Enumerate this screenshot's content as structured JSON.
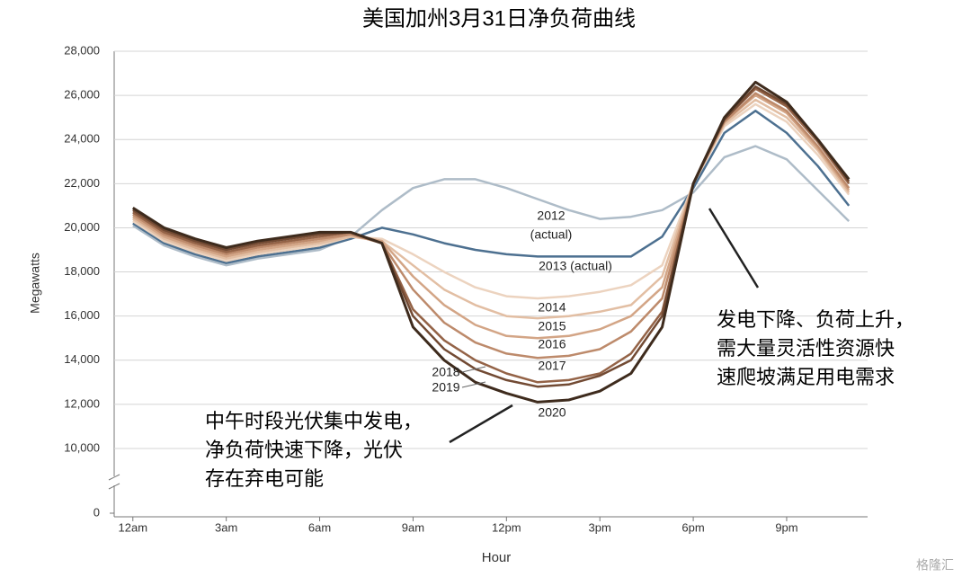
{
  "chart_data": {
    "type": "line",
    "title": "美国加州3月31日净负荷曲线",
    "x_label": "Hour",
    "y_label": "Megawatts",
    "x": [
      0,
      1,
      2,
      3,
      4,
      5,
      6,
      7,
      8,
      9,
      10,
      11,
      12,
      13,
      14,
      15,
      16,
      17,
      18,
      19,
      20,
      21,
      22,
      23
    ],
    "xlim": [
      -0.6,
      23.6
    ],
    "xticks": [
      {
        "value": 0,
        "label": "12am"
      },
      {
        "value": 3,
        "label": "3am"
      },
      {
        "value": 6,
        "label": "6am"
      },
      {
        "value": 9,
        "label": "9am"
      },
      {
        "value": 12,
        "label": "12pm"
      },
      {
        "value": 15,
        "label": "3pm"
      },
      {
        "value": 18,
        "label": "6pm"
      },
      {
        "value": 21,
        "label": "9pm"
      }
    ],
    "ylim": [
      0,
      28000
    ],
    "y_break": [
      0,
      10000
    ],
    "yticks": [
      0,
      {
        "value": 10000,
        "label": "10,000"
      },
      {
        "value": 12000,
        "label": "12,000"
      },
      {
        "value": 14000,
        "label": "14,000"
      },
      {
        "value": 16000,
        "label": "16,000"
      },
      {
        "value": 18000,
        "label": "18,000"
      },
      {
        "value": 20000,
        "label": "20,000"
      },
      {
        "value": 22000,
        "label": "22,000"
      },
      {
        "value": 24000,
        "label": "24,000"
      },
      {
        "value": 26000,
        "label": "26,000"
      },
      {
        "value": 28000,
        "label": "28,000"
      }
    ],
    "grid": true,
    "series": [
      {
        "name": "2012",
        "note": "(actual)",
        "color": "#aebcc8",
        "values": [
          20100,
          19200,
          18700,
          18300,
          18600,
          18800,
          19000,
          19600,
          20800,
          21800,
          22200,
          22200,
          21800,
          21300,
          20800,
          20400,
          20500,
          20800,
          21600,
          23200,
          23700,
          23100,
          21700,
          20300
        ]
      },
      {
        "name": "2013 (actual)",
        "color": "#4d7090",
        "values": [
          20200,
          19300,
          18800,
          18400,
          18700,
          18900,
          19100,
          19500,
          20000,
          19700,
          19300,
          19000,
          18800,
          18700,
          18700,
          18700,
          18700,
          19600,
          21800,
          24300,
          25300,
          24300,
          22800,
          21000
        ]
      },
      {
        "name": "2014",
        "color": "#ecd3bf",
        "values": [
          20300,
          19400,
          18900,
          18500,
          18800,
          19000,
          19200,
          19600,
          19500,
          18800,
          18000,
          17300,
          16900,
          16800,
          16900,
          17100,
          17400,
          18300,
          22000,
          24600,
          25600,
          24800,
          23300,
          21500
        ]
      },
      {
        "name": "2015",
        "color": "#e2bea3",
        "values": [
          20400,
          19500,
          19000,
          18600,
          18900,
          19100,
          19300,
          19600,
          19400,
          18300,
          17200,
          16500,
          16000,
          15900,
          16000,
          16200,
          16500,
          17800,
          22000,
          24700,
          25800,
          25000,
          23500,
          21600
        ]
      },
      {
        "name": "2016",
        "color": "#d3a586",
        "values": [
          20500,
          19600,
          19100,
          18700,
          19000,
          19200,
          19400,
          19700,
          19400,
          17800,
          16500,
          15600,
          15100,
          15000,
          15100,
          15400,
          16000,
          17300,
          22000,
          24800,
          26000,
          25200,
          23600,
          21700
        ]
      },
      {
        "name": "2017",
        "color": "#bd8a6b",
        "values": [
          20600,
          19700,
          19200,
          18800,
          19100,
          19300,
          19500,
          19700,
          19300,
          17200,
          15700,
          14800,
          14300,
          14100,
          14200,
          14500,
          15300,
          16800,
          22000,
          24800,
          26100,
          25300,
          23700,
          21800
        ]
      },
      {
        "name": "2018",
        "color": "#946347",
        "values": [
          20700,
          19800,
          19300,
          18900,
          19200,
          19400,
          19600,
          19800,
          19300,
          16300,
          14900,
          14000,
          13400,
          13000,
          13100,
          13400,
          14300,
          16200,
          22000,
          24900,
          26300,
          25500,
          23900,
          22000
        ]
      },
      {
        "name": "2019",
        "color": "#724a33",
        "values": [
          20800,
          19900,
          19400,
          19000,
          19300,
          19500,
          19700,
          19800,
          19300,
          16000,
          14500,
          13600,
          13100,
          12800,
          12900,
          13300,
          14000,
          16000,
          22000,
          24900,
          26400,
          25600,
          24000,
          22100
        ]
      },
      {
        "name": "2020",
        "color": "#3e2b1d",
        "values": [
          20900,
          20000,
          19500,
          19100,
          19400,
          19600,
          19800,
          19800,
          19300,
          15500,
          14000,
          13000,
          12500,
          12100,
          12200,
          12600,
          13400,
          15500,
          22000,
          25000,
          26600,
          25700,
          24000,
          22200
        ]
      }
    ],
    "annotations": [
      {
        "lines": [
          "中午时段光伏集中发电，",
          "净负荷快速下降，光伏",
          "存在弃电可能"
        ]
      },
      {
        "lines": [
          "发电下降、负荷上升，",
          "需大量灵活性资源快",
          "速爬坡满足用电需求"
        ]
      }
    ],
    "watermark": "格隆汇"
  }
}
